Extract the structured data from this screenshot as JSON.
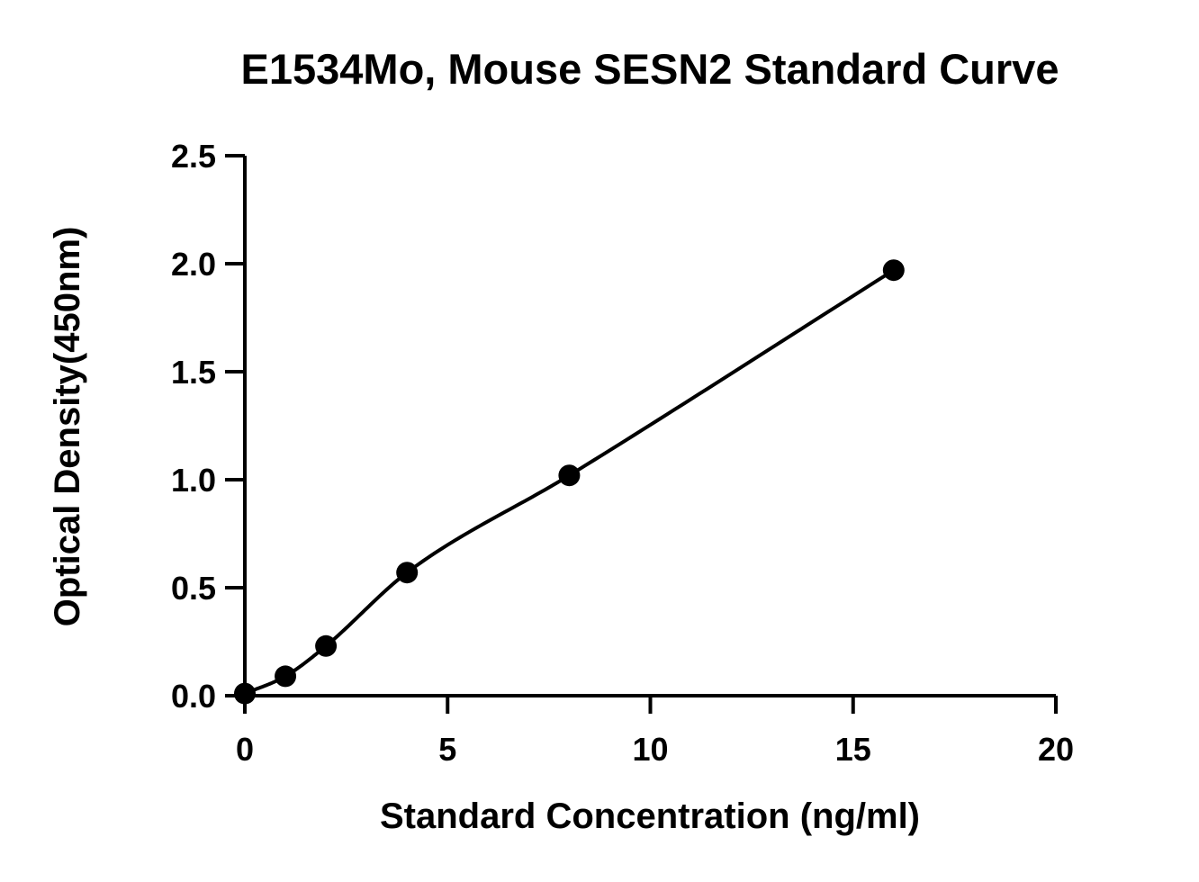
{
  "chart_data": {
    "type": "scatter",
    "title": "E1534Mo, Mouse SESN2 Standard Curve",
    "xlabel": "Standard Concentration (ng/ml)",
    "ylabel": "Optical Density(450nm)",
    "xlim": [
      0,
      20
    ],
    "ylim": [
      0,
      2.5
    ],
    "xticks": [
      0,
      5,
      10,
      15,
      20
    ],
    "xtick_labels": [
      "0",
      "5",
      "10",
      "15",
      "20"
    ],
    "yticks": [
      0,
      0.5,
      1.0,
      1.5,
      2.0,
      2.5
    ],
    "ytick_labels": [
      "0.0",
      "0.5",
      "1.0",
      "1.5",
      "2.0",
      "2.5"
    ],
    "grid": false,
    "legend": "none",
    "series": [
      {
        "x": [
          0,
          1,
          2,
          4,
          8,
          16
        ],
        "y": [
          0.01,
          0.09,
          0.23,
          0.57,
          1.02,
          1.97
        ],
        "fit": "smooth curve"
      }
    ],
    "colors": {
      "marker": "#000000",
      "line": "#000000",
      "axis": "#000000",
      "background": "#ffffff"
    }
  }
}
